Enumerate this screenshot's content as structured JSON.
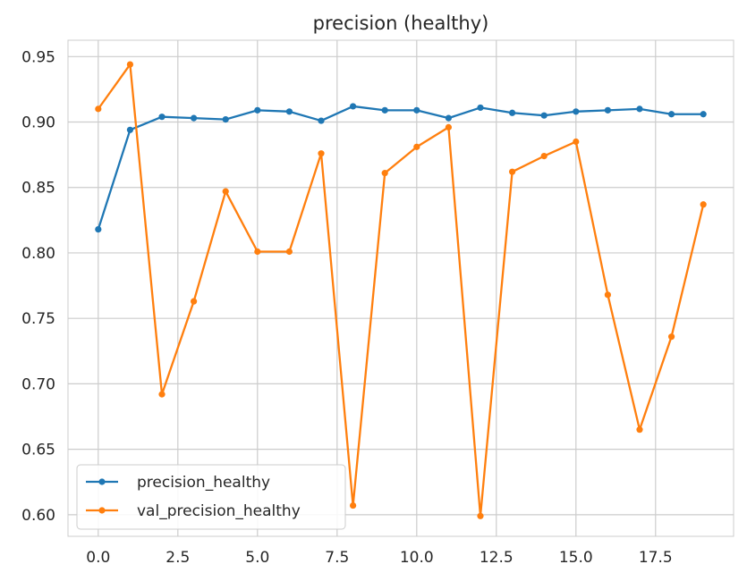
{
  "chart_data": {
    "type": "line",
    "title": "precision (healthy)",
    "xlabel": "",
    "ylabel": "",
    "xlim": [
      -0.95,
      19.95
    ],
    "ylim": [
      0.5835,
      0.9625
    ],
    "xticks": [
      0.0,
      2.5,
      5.0,
      7.5,
      10.0,
      12.5,
      15.0,
      17.5
    ],
    "xtick_labels": [
      "0.0",
      "2.5",
      "5.0",
      "7.5",
      "10.0",
      "12.5",
      "15.0",
      "17.5"
    ],
    "yticks": [
      0.6,
      0.65,
      0.7,
      0.75,
      0.8,
      0.85,
      0.9,
      0.95
    ],
    "ytick_labels": [
      "0.60",
      "0.65",
      "0.70",
      "0.75",
      "0.80",
      "0.85",
      "0.90",
      "0.95"
    ],
    "grid": true,
    "legend_position": "lower-left",
    "x": [
      0,
      1,
      2,
      3,
      4,
      5,
      6,
      7,
      8,
      9,
      10,
      11,
      12,
      13,
      14,
      15,
      16,
      17,
      18,
      19
    ],
    "series": [
      {
        "name": "precision_healthy",
        "color": "#1f77b4",
        "values": [
          0.818,
          0.894,
          0.904,
          0.903,
          0.902,
          0.909,
          0.908,
          0.901,
          0.912,
          0.909,
          0.909,
          0.903,
          0.911,
          0.907,
          0.905,
          0.908,
          0.909,
          0.91,
          0.906,
          0.906
        ]
      },
      {
        "name": "val_precision_healthy",
        "color": "#ff7f0e",
        "values": [
          0.91,
          0.944,
          0.692,
          0.763,
          0.847,
          0.801,
          0.801,
          0.876,
          0.607,
          0.861,
          0.881,
          0.896,
          0.599,
          0.862,
          0.874,
          0.885,
          0.768,
          0.665,
          0.736,
          0.837
        ]
      }
    ]
  }
}
